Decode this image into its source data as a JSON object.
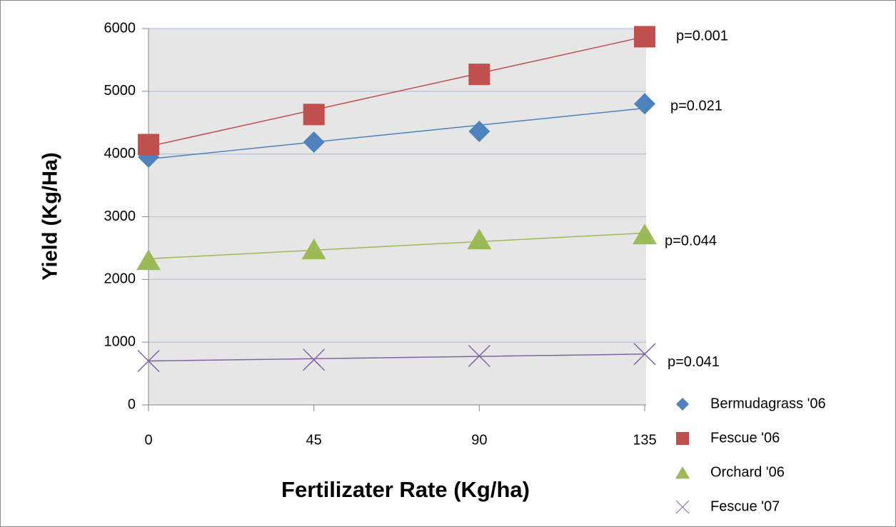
{
  "chart_data": {
    "type": "line",
    "x_label": "Fertilizater Rate (Kg/ha)",
    "y_label": "Yield (Kg/Ha)",
    "x": [
      0,
      45,
      90,
      135
    ],
    "xlim": [
      0,
      135
    ],
    "xticks": [
      0,
      45,
      90,
      135
    ],
    "ylim": [
      0,
      6000
    ],
    "yticks": [
      0,
      1000,
      2000,
      3000,
      4000,
      5000,
      6000
    ],
    "grid": true,
    "legend": "bottom-right",
    "series": [
      {
        "name": "Bermudagrass '06",
        "color": "#4f81bd",
        "marker": "diamond",
        "values": [
          3950,
          4190,
          4360,
          4800
        ],
        "trendline": [
          3920,
          4730
        ],
        "annotation": "p=0.021"
      },
      {
        "name": "Fescue '06",
        "color": "#c0504d",
        "marker": "square",
        "values": [
          4150,
          4630,
          5270,
          5870
        ],
        "trendline": [
          4120,
          5870
        ],
        "annotation": "p=0.001"
      },
      {
        "name": "Orchard '06",
        "color": "#9bbb59",
        "marker": "triangle",
        "values": [
          2310,
          2480,
          2640,
          2720
        ],
        "trendline": [
          2330,
          2740
        ],
        "annotation": "p=0.044"
      },
      {
        "name": "Fescue '07",
        "color": "#8064a2",
        "marker": "x",
        "values": [
          700,
          720,
          780,
          810
        ],
        "trendline": [
          700,
          810
        ],
        "annotation": "p=0.041"
      }
    ]
  }
}
